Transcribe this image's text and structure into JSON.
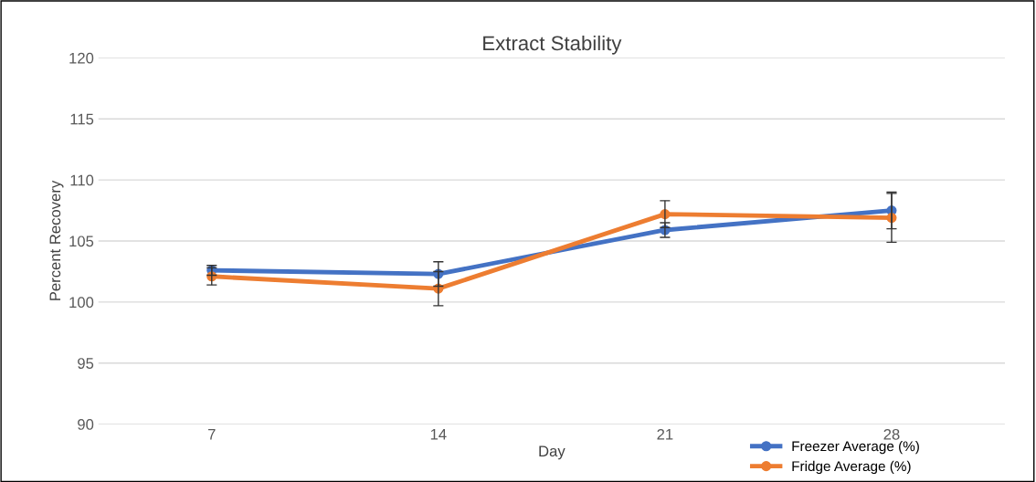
{
  "chart_data": {
    "type": "line",
    "title": "Extract Stability",
    "xlabel": "Day",
    "ylabel": "Percent Recovery",
    "categories": [
      "7",
      "14",
      "21",
      "28"
    ],
    "series": [
      {
        "name": "Freezer Average (%)",
        "color": "#4472c4",
        "values": [
          102.6,
          102.3,
          105.9,
          107.5
        ],
        "errors": [
          0.4,
          1.0,
          0.6,
          1.5
        ]
      },
      {
        "name": "Fridge Average (%)",
        "color": "#ed7d31",
        "values": [
          102.1,
          101.1,
          107.2,
          106.9
        ],
        "errors": [
          0.7,
          1.4,
          1.1,
          2.0
        ]
      }
    ],
    "ylim": [
      90,
      120
    ],
    "yticks": [
      90,
      95,
      100,
      105,
      110,
      115,
      120
    ],
    "grid": "y",
    "legend": "bottom right",
    "marker": "circle",
    "line_style": "solid"
  }
}
